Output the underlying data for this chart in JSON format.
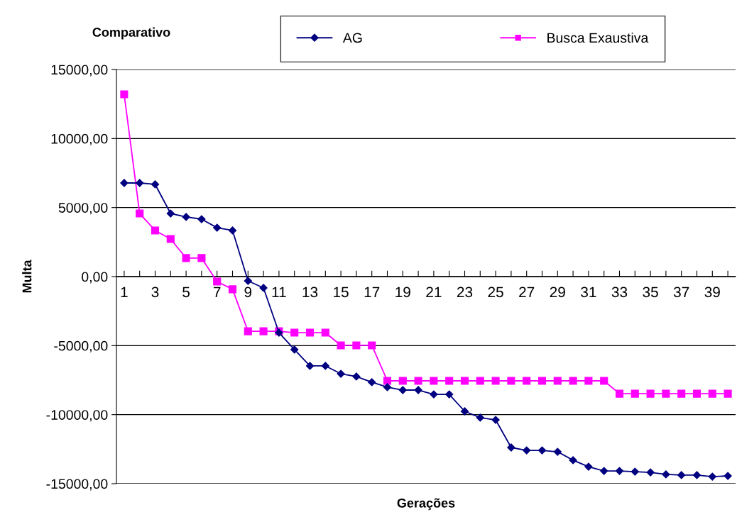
{
  "chart_data": {
    "type": "line",
    "title": "Comparativo",
    "xlabel": "Gerações",
    "ylabel": "Multa",
    "categories": [
      "1",
      null,
      "3",
      null,
      "5",
      null,
      "7",
      null,
      "9",
      null,
      "11",
      null,
      "13",
      null,
      "15",
      null,
      "17",
      null,
      "19",
      null,
      "21",
      null,
      "23",
      null,
      "25",
      null,
      "27",
      null,
      "29",
      null,
      "31",
      null,
      "33",
      null,
      "35",
      null,
      "37",
      null,
      "39",
      null
    ],
    "series": [
      {
        "name": "AG",
        "color": "#000080",
        "marker": "diamond",
        "values": [
          6780,
          6780,
          6680,
          4570,
          4320,
          4160,
          3540,
          3340,
          -310,
          -820,
          -4060,
          -5290,
          -6470,
          -6470,
          -7040,
          -7240,
          -7650,
          -8010,
          -8220,
          -8220,
          -8530,
          -8530,
          -9760,
          -10220,
          -10380,
          -12380,
          -12590,
          -12590,
          -12690,
          -13300,
          -13770,
          -14080,
          -14080,
          -14130,
          -14180,
          -14330,
          -14380,
          -14380,
          -14490,
          -14440
        ]
      },
      {
        "name": "Busca Exaustiva",
        "color": "#ff00ff",
        "marker": "square",
        "values": [
          13200,
          4570,
          3340,
          2720,
          1340,
          1340,
          -360,
          -920,
          -3960,
          -3960,
          -3960,
          -4060,
          -4060,
          -4060,
          -4980,
          -4980,
          -4980,
          -7550,
          -7550,
          -7550,
          -7550,
          -7550,
          -7550,
          -7550,
          -7550,
          -7550,
          -7550,
          -7550,
          -7550,
          -7550,
          -7550,
          -7550,
          -8480,
          -8480,
          -8480,
          -8480,
          -8480,
          -8480,
          -8480,
          -8480
        ]
      }
    ],
    "ylim": [
      -15000,
      15000
    ],
    "yticks": [
      {
        "value": -15000,
        "label": "-15000,00"
      },
      {
        "value": -10000,
        "label": "-10000,00"
      },
      {
        "value": -5000,
        "label": "-5000,00"
      },
      {
        "value": 0,
        "label": "0,00"
      },
      {
        "value": 5000,
        "label": "5000,00"
      },
      {
        "value": 10000,
        "label": "10000,00"
      },
      {
        "value": 15000,
        "label": "15000,00"
      }
    ],
    "grid": "y",
    "legend": "top",
    "line_style": "solid"
  }
}
